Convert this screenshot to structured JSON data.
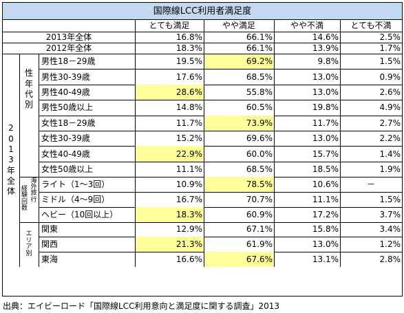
{
  "chart_data": {
    "type": "table",
    "title": "国際線LCC利用者満足度",
    "columns": [
      "とても満足",
      "やや満足",
      "やや不満",
      "とても不満"
    ],
    "overall_rows": [
      {
        "label": "2013年全体",
        "values": [
          "16.8%",
          "66.1%",
          "14.6%",
          "2.5%"
        ]
      },
      {
        "label": "2012年全体",
        "values": [
          "18.3%",
          "66.1%",
          "13.9%",
          "1.7%"
        ]
      }
    ],
    "outer_group": {
      "label": "2013年全体"
    },
    "groups": [
      {
        "label": "性年代別",
        "rows": [
          {
            "label": "男性18－29歳",
            "values": [
              "19.5%",
              "69.2%",
              "9.8%",
              "1.5%"
            ],
            "highlight": [
              1
            ]
          },
          {
            "label": "男性30-39歳",
            "values": [
              "17.6%",
              "68.5%",
              "13.0%",
              "0.9%"
            ],
            "highlight": []
          },
          {
            "label": "男性40-49歳",
            "values": [
              "28.6%",
              "55.8%",
              "13.0%",
              "2.6%"
            ],
            "highlight": [
              0
            ]
          },
          {
            "label": "男性50歳以上",
            "values": [
              "14.8%",
              "60.5%",
              "19.8%",
              "4.9%"
            ],
            "highlight": []
          },
          {
            "label": "女性18－29歳",
            "values": [
              "11.7%",
              "73.9%",
              "11.7%",
              "2.7%"
            ],
            "highlight": [
              1
            ]
          },
          {
            "label": "女性30-39歳",
            "values": [
              "15.2%",
              "69.6%",
              "13.0%",
              "2.2%"
            ],
            "highlight": []
          },
          {
            "label": "女性40-49歳",
            "values": [
              "22.9%",
              "60.0%",
              "15.7%",
              "1.4%"
            ],
            "highlight": [
              0
            ]
          },
          {
            "label": "女性50歳以上",
            "values": [
              "11.1%",
              "68.5%",
              "18.5%",
              "1.9%"
            ],
            "highlight": []
          }
        ]
      },
      {
        "label": "経験回数",
        "sublabel": "海外旅行",
        "rows": [
          {
            "label": "ライト（1～3回）",
            "values": [
              "10.9%",
              "78.5%",
              "10.6%",
              "－"
            ],
            "highlight": [
              1
            ]
          },
          {
            "label": "ミドル（4～9回）",
            "values": [
              "16.7%",
              "70.7%",
              "11.1%",
              "1.5%"
            ],
            "highlight": []
          },
          {
            "label": "ヘビー（10回以上）",
            "values": [
              "18.3%",
              "60.9%",
              "17.2%",
              "3.7%"
            ],
            "highlight": [
              0
            ]
          }
        ]
      },
      {
        "label": "エリア別",
        "rows": [
          {
            "label": "関東",
            "values": [
              "12.9%",
              "67.1%",
              "15.8%",
              "3.4%"
            ],
            "highlight": []
          },
          {
            "label": "関西",
            "values": [
              "21.3%",
              "61.9%",
              "13.0%",
              "1.2%"
            ],
            "highlight": [
              0
            ]
          },
          {
            "label": "東海",
            "values": [
              "16.6%",
              "67.6%",
              "13.1%",
              "2.8%"
            ],
            "highlight": [
              1
            ]
          }
        ]
      }
    ],
    "colors": {
      "title_bg": "#c5d9f1",
      "highlight": "#ffff99",
      "border": "#000000"
    },
    "source": "出典：エイビーロード「国際線LCC利用意向と満足度に関する調査」2013"
  }
}
